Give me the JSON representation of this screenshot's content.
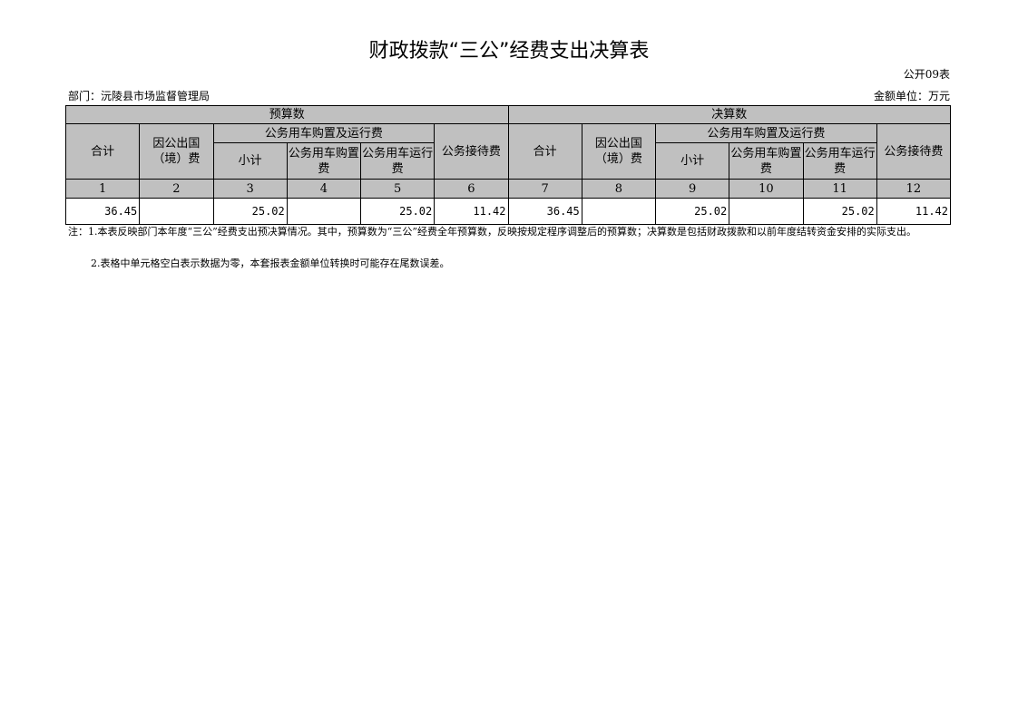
{
  "title": "财政拨款“三公”经费支出决算表",
  "form_no": "公开09表",
  "department": "部门：沅陵县市场监督管理局",
  "unit": "金额单位：万元",
  "header": {
    "budget": "预算数",
    "final": "决算数",
    "total": "合计",
    "abroad": "因公出国（境）费",
    "vehicle": "公务用车购置及运行费",
    "subtotal": "小计",
    "purchase": "公务用车购置费",
    "operation": "公务用车运行费",
    "reception": "公务接待费"
  },
  "col_numbers": [
    "1",
    "2",
    "3",
    "4",
    "5",
    "6",
    "7",
    "8",
    "9",
    "10",
    "11",
    "12"
  ],
  "row": [
    "36.45",
    "",
    "25.02",
    "",
    "25.02",
    "11.42",
    "36.45",
    "",
    "25.02",
    "",
    "25.02",
    "11.42"
  ],
  "notes": [
    "注：1.本表反映部门本年度“三公”经费支出预决算情况。其中，预算数为“三公”经费全年预算数，反映按规定程序调整后的预算数；决算数是包括财政拨款和以前年度结转资金安排的实际支出。",
    "2.表格中单元格空白表示数据为零，本套报表金额单位转换时可能存在尾数误差。"
  ],
  "colors": {
    "header_bg": "#c0c0c0"
  }
}
